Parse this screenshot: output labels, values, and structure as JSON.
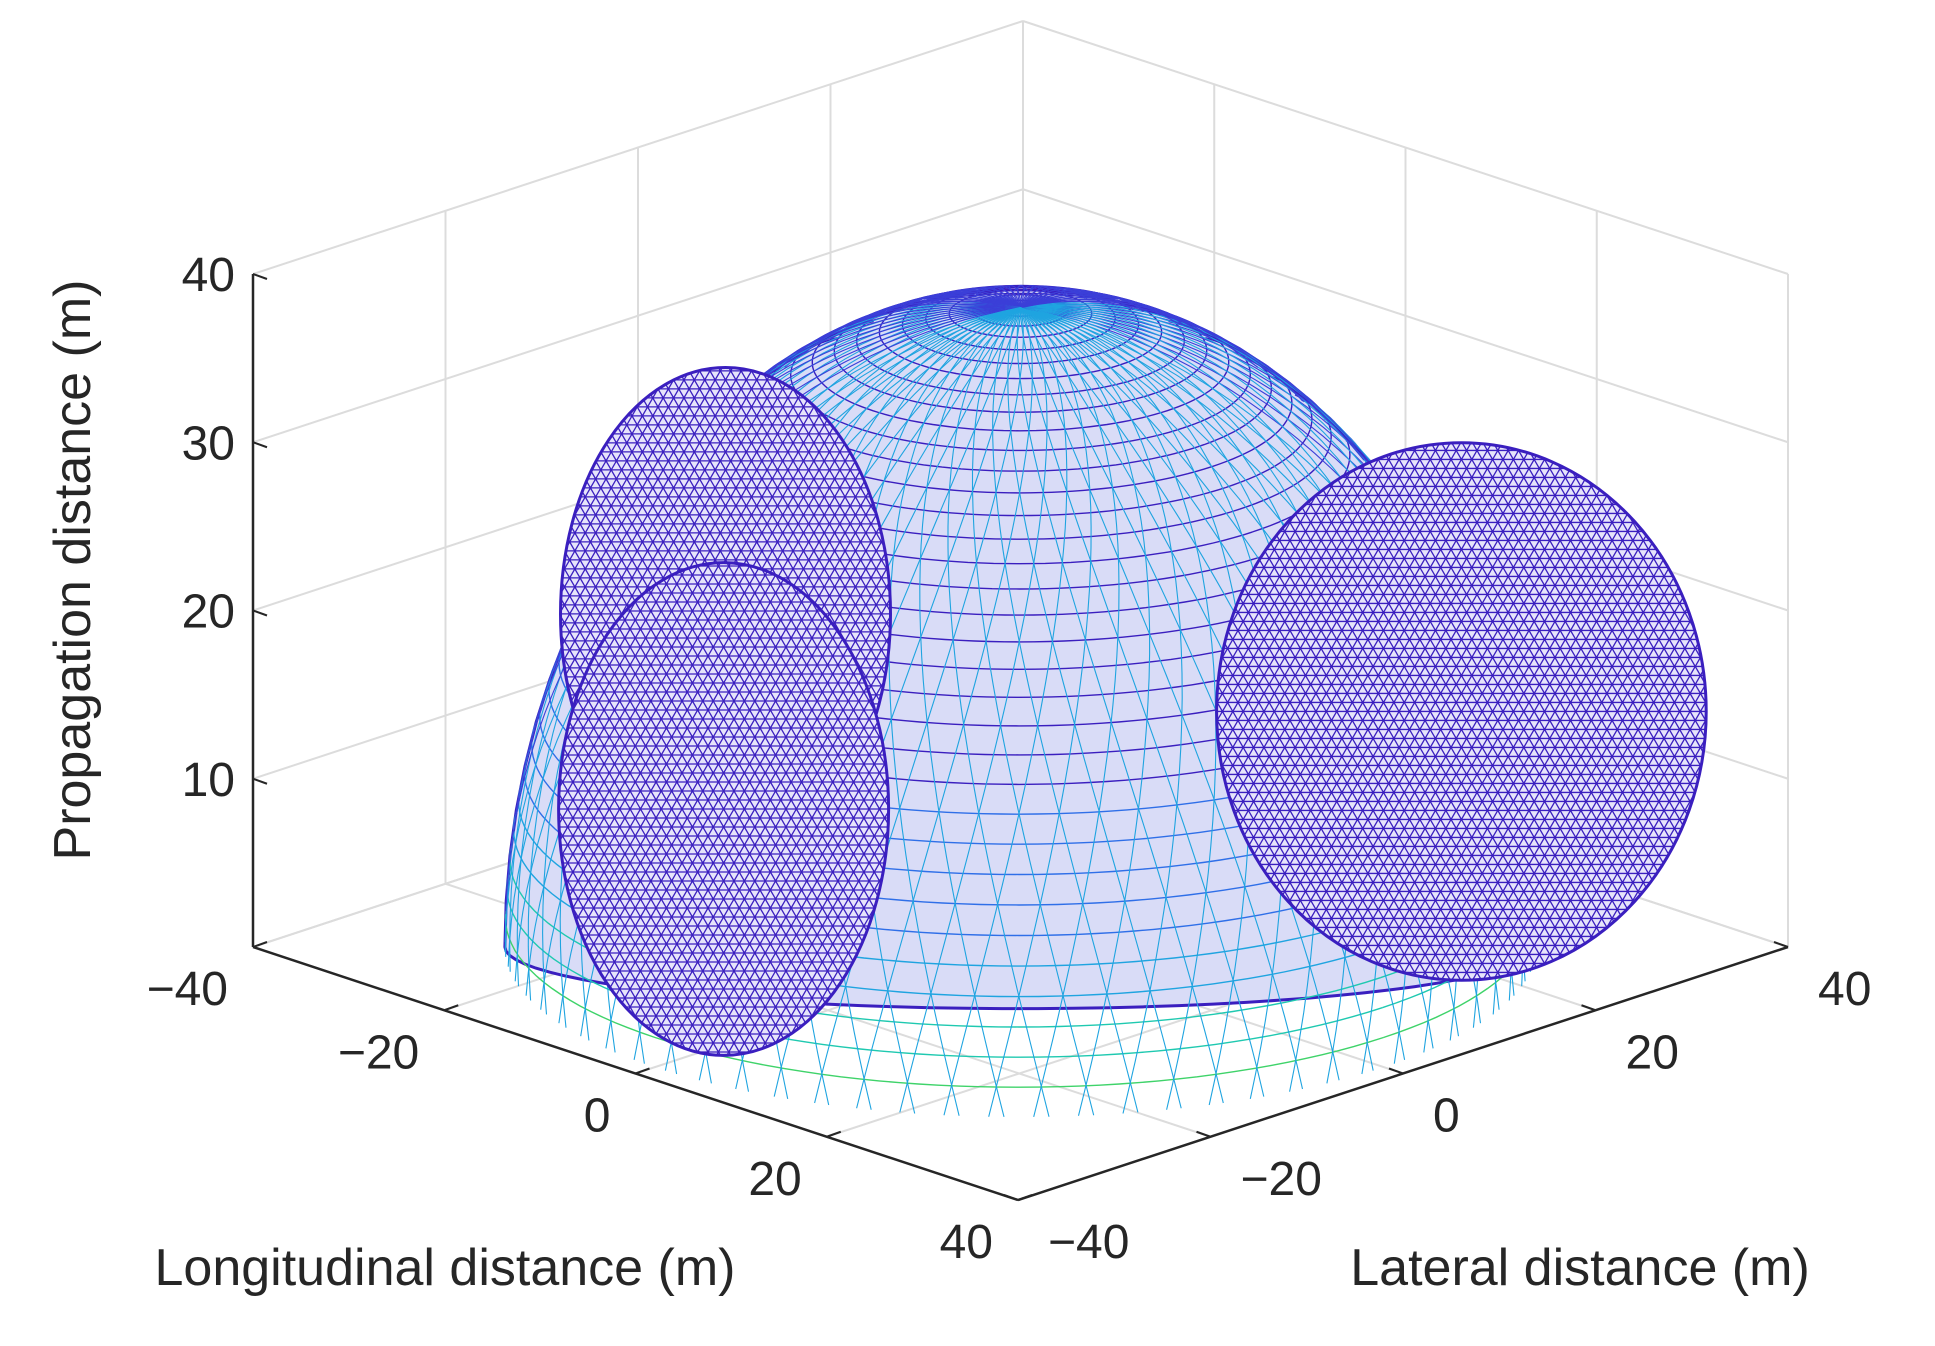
{
  "chart_data": {
    "type": "surface3d",
    "title": "",
    "xlabel": "Longitudinal distance (m)",
    "ylabel": "Lateral distance (m)",
    "zlabel": "Propagation distance (m)",
    "xlim": [
      -40,
      40
    ],
    "ylim": [
      -40,
      40
    ],
    "zlim": [
      0,
      40
    ],
    "x_ticks": [
      -40,
      -20,
      0,
      20,
      40
    ],
    "y_ticks": [
      -40,
      -20,
      0,
      20,
      40
    ],
    "z_ticks": [
      10,
      20,
      30,
      40
    ],
    "grid": true,
    "box": true,
    "dome": {
      "center": [
        0,
        0,
        0
      ],
      "radius": 38,
      "z_max": 38
    },
    "blasthole_cones": [
      {
        "name": "",
        "axis_direction": [
          -1,
          0,
          0.35
        ],
        "cap_radius": 22
      },
      {
        "name": "",
        "axis_direction": [
          0,
          -1,
          0.35
        ],
        "cap_radius": 22
      },
      {
        "name": "",
        "axis_direction": [
          1,
          1,
          0.15
        ],
        "cap_radius": 24
      }
    ],
    "colormap": [
      "#3a1fbf",
      "#3b3fd8",
      "#2f6fe8",
      "#1fa4e0",
      "#1fc9b0",
      "#3fd36a"
    ]
  }
}
